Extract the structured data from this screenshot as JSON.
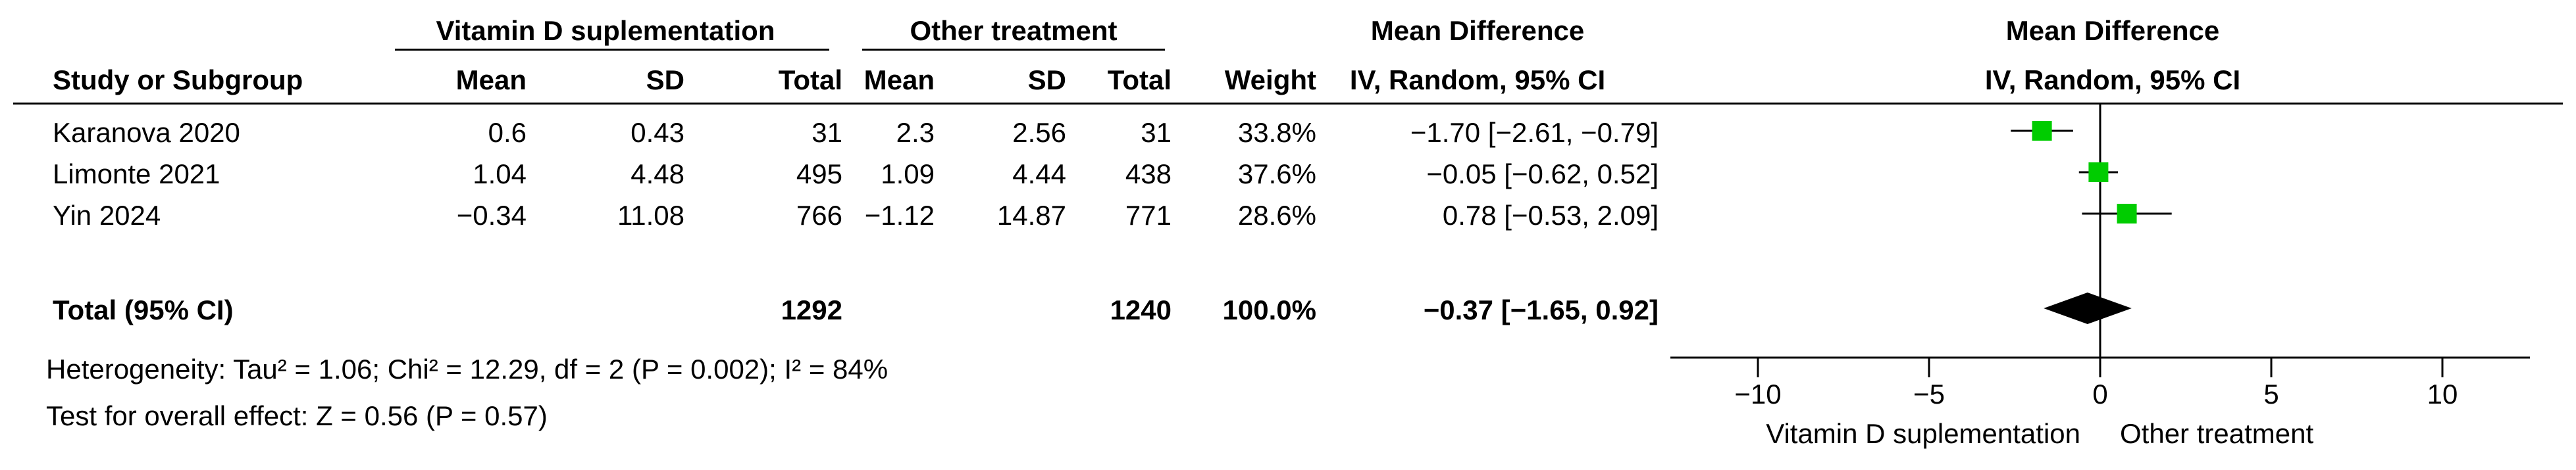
{
  "headers": {
    "group1": "Vitamin D suplementation",
    "group2": "Other treatment",
    "effect_header1": "Mean Difference",
    "effect_header2": "IV, Random, 95% CI",
    "plot_header1": "Mean Difference",
    "plot_header2": "IV, Random, 95% CI",
    "study": "Study or Subgroup",
    "mean1": "Mean",
    "sd1": "SD",
    "total1": "Total",
    "mean2": "Mean",
    "sd2": "SD",
    "total2": "Total",
    "weight": "Weight"
  },
  "studies": [
    {
      "name": "Karanova 2020",
      "mean1": "0.6",
      "sd1": "0.43",
      "total1": "31",
      "mean2": "2.3",
      "sd2": "2.56",
      "total2": "31",
      "weight": "33.8%",
      "ci": "−1.70 [−2.61, −0.79]"
    },
    {
      "name": "Limonte 2021",
      "mean1": "1.04",
      "sd1": "4.48",
      "total1": "495",
      "mean2": "1.09",
      "sd2": "4.44",
      "total2": "438",
      "weight": "37.6%",
      "ci": "−0.05 [−0.62, 0.52]"
    },
    {
      "name": "Yin 2024",
      "mean1": "−0.34",
      "sd1": "11.08",
      "total1": "766",
      "mean2": "−1.12",
      "sd2": "14.87",
      "total2": "771",
      "weight": "28.6%",
      "ci": "0.78 [−0.53, 2.09]"
    }
  ],
  "total": {
    "label": "Total (95% CI)",
    "total1": "1292",
    "total2": "1240",
    "weight": "100.0%",
    "ci": "−0.37 [−1.65, 0.92]"
  },
  "footer": {
    "heterogeneity": "Heterogeneity: Tau² = 1.06; Chi² = 12.29, df = 2 (P = 0.002); I² = 84%",
    "overall": "Test for overall effect: Z = 0.56 (P = 0.57)"
  },
  "chart_data": {
    "type": "forest",
    "x_range": [
      -10,
      10
    ],
    "ticks": [
      -10,
      -5,
      0,
      5,
      10
    ],
    "tick_labels": [
      "−10",
      "−5",
      "0",
      "5",
      "10"
    ],
    "favours_left": "Vitamin D suplementation",
    "favours_right": "Other treatment",
    "marker_color": "#00cc00",
    "series": [
      {
        "name": "Karanova 2020",
        "estimate": -1.7,
        "lower": -2.61,
        "upper": -0.79,
        "weight": 33.8
      },
      {
        "name": "Limonte 2021",
        "estimate": -0.05,
        "lower": -0.62,
        "upper": 0.52,
        "weight": 37.6
      },
      {
        "name": "Yin 2024",
        "estimate": 0.78,
        "lower": -0.53,
        "upper": 2.09,
        "weight": 28.6
      }
    ],
    "pooled": {
      "estimate": -0.37,
      "lower": -1.65,
      "upper": 0.92
    }
  }
}
